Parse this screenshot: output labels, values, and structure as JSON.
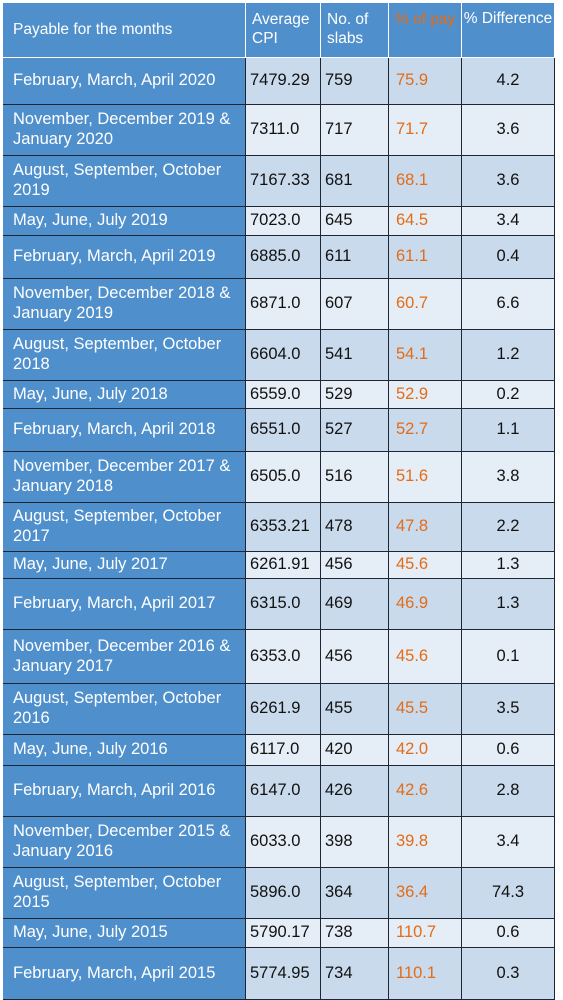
{
  "header": {
    "months": "Payable for the months",
    "cpi": "Average CPI",
    "slabs": "No. of slabs",
    "pay": "% of pay",
    "diff": "% Difference"
  },
  "rows": [
    {
      "months": "February, March, April 2020",
      "cpi": "7479.29",
      "slabs": "759",
      "pay": "75.9",
      "diff": "4.2"
    },
    {
      "months": "November, December 2019 & January 2020",
      "cpi": "7311.0",
      "slabs": "717",
      "pay": "71.7",
      "diff": "3.6"
    },
    {
      "months": "August, September, October 2019",
      "cpi": "7167.33",
      "slabs": "681",
      "pay": "68.1",
      "diff": "3.6"
    },
    {
      "months": "May, June, July 2019",
      "cpi": "7023.0",
      "slabs": "645",
      "pay": "64.5",
      "diff": "3.4"
    },
    {
      "months": "February, March, April 2019",
      "cpi": "6885.0",
      "slabs": "611",
      "pay": "61.1",
      "diff": "0.4"
    },
    {
      "months": "November, December 2018 & January 2019",
      "cpi": "6871.0",
      "slabs": "607",
      "pay": "60.7",
      "diff": "6.6"
    },
    {
      "months": "August, September, October 2018",
      "cpi": "6604.0",
      "slabs": "541",
      "pay": "54.1",
      "diff": "1.2"
    },
    {
      "months": "May, June, July 2018",
      "cpi": "6559.0",
      "slabs": "529",
      "pay": "52.9",
      "diff": "0.2"
    },
    {
      "months": "February, March, April 2018",
      "cpi": "6551.0",
      "slabs": "527",
      "pay": "52.7",
      "diff": "1.1"
    },
    {
      "months": "November, December 2017 & January 2018",
      "cpi": "6505.0",
      "slabs": "516",
      "pay": "51.6",
      "diff": "3.8"
    },
    {
      "months": "August, September, October 2017",
      "cpi": "6353.21",
      "slabs": "478",
      "pay": "47.8",
      "diff": "2.2"
    },
    {
      "months": "May, June, July 2017",
      "cpi": "6261.91",
      "slabs": "456",
      "pay": "45.6",
      "diff": "1.3"
    },
    {
      "months": "February, March, April 2017",
      "cpi": "6315.0",
      "slabs": "469",
      "pay": "46.9",
      "diff": "1.3"
    },
    {
      "months": "November, December 2016 & January 2017",
      "cpi": "6353.0",
      "slabs": "456",
      "pay": "45.6",
      "diff": "0.1"
    },
    {
      "months": "August, September, October 2016",
      "cpi": "6261.9",
      "slabs": "455",
      "pay": "45.5",
      "diff": "3.5"
    },
    {
      "months": "May, June, July 2016",
      "cpi": "6117.0",
      "slabs": "420",
      "pay": "42.0",
      "diff": "0.6"
    },
    {
      "months": "February, March, April 2016",
      "cpi": "6147.0",
      "slabs": "426",
      "pay": "42.6",
      "diff": "2.8"
    },
    {
      "months": "November, December 2015 & January 2016",
      "cpi": "6033.0",
      "slabs": "398",
      "pay": "39.8",
      "diff": "3.4"
    },
    {
      "months": "August, September, October 2015",
      "cpi": "5896.0",
      "slabs": "364",
      "pay": "36.4",
      "diff": "74.3"
    },
    {
      "months": "May, June, July 2015",
      "cpi": "5790.17",
      "slabs": "738",
      "pay": "110.7",
      "diff": "0.6"
    },
    {
      "months": "February, March, April 2015",
      "cpi": "5774.95",
      "slabs": "734",
      "pay": "110.1",
      "diff": "0.3"
    }
  ],
  "colors": {
    "header_bg": "#4f8fcc",
    "accent_orange": "#e36c17",
    "row_alt": "#c9daec",
    "row_norm": "#e5edf6"
  }
}
